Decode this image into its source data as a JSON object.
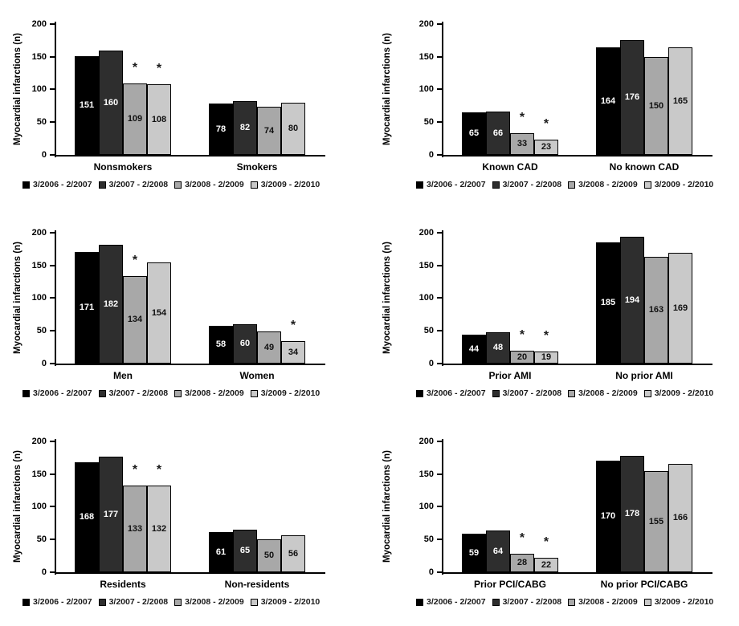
{
  "figure": {
    "background": "#ffffff",
    "ylabel": "Myocardial infarctions (n)",
    "legend_labels": [
      "3/2006 - 2/2007",
      "3/2007 - 2/2008",
      "3/2008 - 2/2009",
      "3/2009 - 2/2010"
    ],
    "series_colors": [
      "#000000",
      "#2e2e2e",
      "#a8a8a8",
      "#c9c9c9"
    ],
    "value_label_colors": [
      "#ffffff",
      "#ffffff",
      "#111111",
      "#111111"
    ],
    "significance_marker": "*"
  },
  "chart_data": [
    {
      "type": "bar",
      "ylabel": "Myocardial infarctions (n)",
      "ylim": [
        0,
        200
      ],
      "yticks": [
        0,
        50,
        100,
        150,
        200
      ],
      "grid": false,
      "legend_position": "bottom-left",
      "categories": [
        "Nonsmokers",
        "Smokers"
      ],
      "series": [
        {
          "name": "3/2006 - 2/2007",
          "values": [
            151,
            78
          ]
        },
        {
          "name": "3/2007 - 2/2008",
          "values": [
            160,
            82
          ]
        },
        {
          "name": "3/2008 - 2/2009",
          "values": [
            109,
            74
          ]
        },
        {
          "name": "3/2009 - 2/2010",
          "values": [
            108,
            80
          ]
        }
      ],
      "starred_series_by_category": [
        [
          2,
          3
        ],
        []
      ]
    },
    {
      "type": "bar",
      "ylabel": "Myocardial infarctions (n)",
      "ylim": [
        0,
        200
      ],
      "yticks": [
        0,
        50,
        100,
        150,
        200
      ],
      "grid": false,
      "legend_position": "bottom-left",
      "categories": [
        "Known CAD",
        "No known CAD"
      ],
      "series": [
        {
          "name": "3/2006 - 2/2007",
          "values": [
            65,
            164
          ]
        },
        {
          "name": "3/2007 - 2/2008",
          "values": [
            66,
            176
          ]
        },
        {
          "name": "3/2008 - 2/2009",
          "values": [
            33,
            150
          ]
        },
        {
          "name": "3/2009 - 2/2010",
          "values": [
            23,
            165
          ]
        }
      ],
      "starred_series_by_category": [
        [
          2,
          3
        ],
        []
      ]
    },
    {
      "type": "bar",
      "ylabel": "Myocardial infarctions (n)",
      "ylim": [
        0,
        200
      ],
      "yticks": [
        0,
        50,
        100,
        150,
        200
      ],
      "grid": false,
      "legend_position": "bottom-left",
      "categories": [
        "Men",
        "Women"
      ],
      "series": [
        {
          "name": "3/2006 - 2/2007",
          "values": [
            171,
            58
          ]
        },
        {
          "name": "3/2007 - 2/2008",
          "values": [
            182,
            60
          ]
        },
        {
          "name": "3/2008 - 2/2009",
          "values": [
            134,
            49
          ]
        },
        {
          "name": "3/2009 - 2/2010",
          "values": [
            154,
            34
          ]
        }
      ],
      "starred_series_by_category": [
        [
          2
        ],
        [
          3
        ]
      ]
    },
    {
      "type": "bar",
      "ylabel": "Myocardial infarctions (n)",
      "ylim": [
        0,
        200
      ],
      "yticks": [
        0,
        50,
        100,
        150,
        200
      ],
      "grid": false,
      "legend_position": "bottom-left",
      "categories": [
        "Prior AMI",
        "No prior AMI"
      ],
      "series": [
        {
          "name": "3/2006 - 2/2007",
          "values": [
            44,
            185
          ]
        },
        {
          "name": "3/2007 - 2/2008",
          "values": [
            48,
            194
          ]
        },
        {
          "name": "3/2008 - 2/2009",
          "values": [
            20,
            163
          ]
        },
        {
          "name": "3/2009 - 2/2010",
          "values": [
            19,
            169
          ]
        }
      ],
      "starred_series_by_category": [
        [
          2,
          3
        ],
        []
      ]
    },
    {
      "type": "bar",
      "ylabel": "Myocardial infarctions (n)",
      "ylim": [
        0,
        200
      ],
      "yticks": [
        0,
        50,
        100,
        150,
        200
      ],
      "grid": false,
      "legend_position": "bottom-left",
      "categories": [
        "Residents",
        "Non-residents"
      ],
      "series": [
        {
          "name": "3/2006 - 2/2007",
          "values": [
            168,
            61
          ]
        },
        {
          "name": "3/2007 - 2/2008",
          "values": [
            177,
            65
          ]
        },
        {
          "name": "3/2008 - 2/2009",
          "values": [
            133,
            50
          ]
        },
        {
          "name": "3/2009 - 2/2010",
          "values": [
            132,
            56
          ]
        }
      ],
      "starred_series_by_category": [
        [
          2,
          3
        ],
        []
      ]
    },
    {
      "type": "bar",
      "ylabel": "Myocardial infarctions (n)",
      "ylim": [
        0,
        200
      ],
      "yticks": [
        0,
        50,
        100,
        150,
        200
      ],
      "grid": false,
      "legend_position": "bottom-left",
      "categories": [
        "Prior PCI/CABG",
        "No prior PCI/CABG"
      ],
      "series": [
        {
          "name": "3/2006 - 2/2007",
          "values": [
            59,
            170
          ]
        },
        {
          "name": "3/2007 - 2/2008",
          "values": [
            64,
            178
          ]
        },
        {
          "name": "3/2008 - 2/2009",
          "values": [
            28,
            155
          ]
        },
        {
          "name": "3/2009 - 2/2010",
          "values": [
            22,
            166
          ]
        }
      ],
      "starred_series_by_category": [
        [
          2,
          3
        ],
        []
      ]
    }
  ]
}
